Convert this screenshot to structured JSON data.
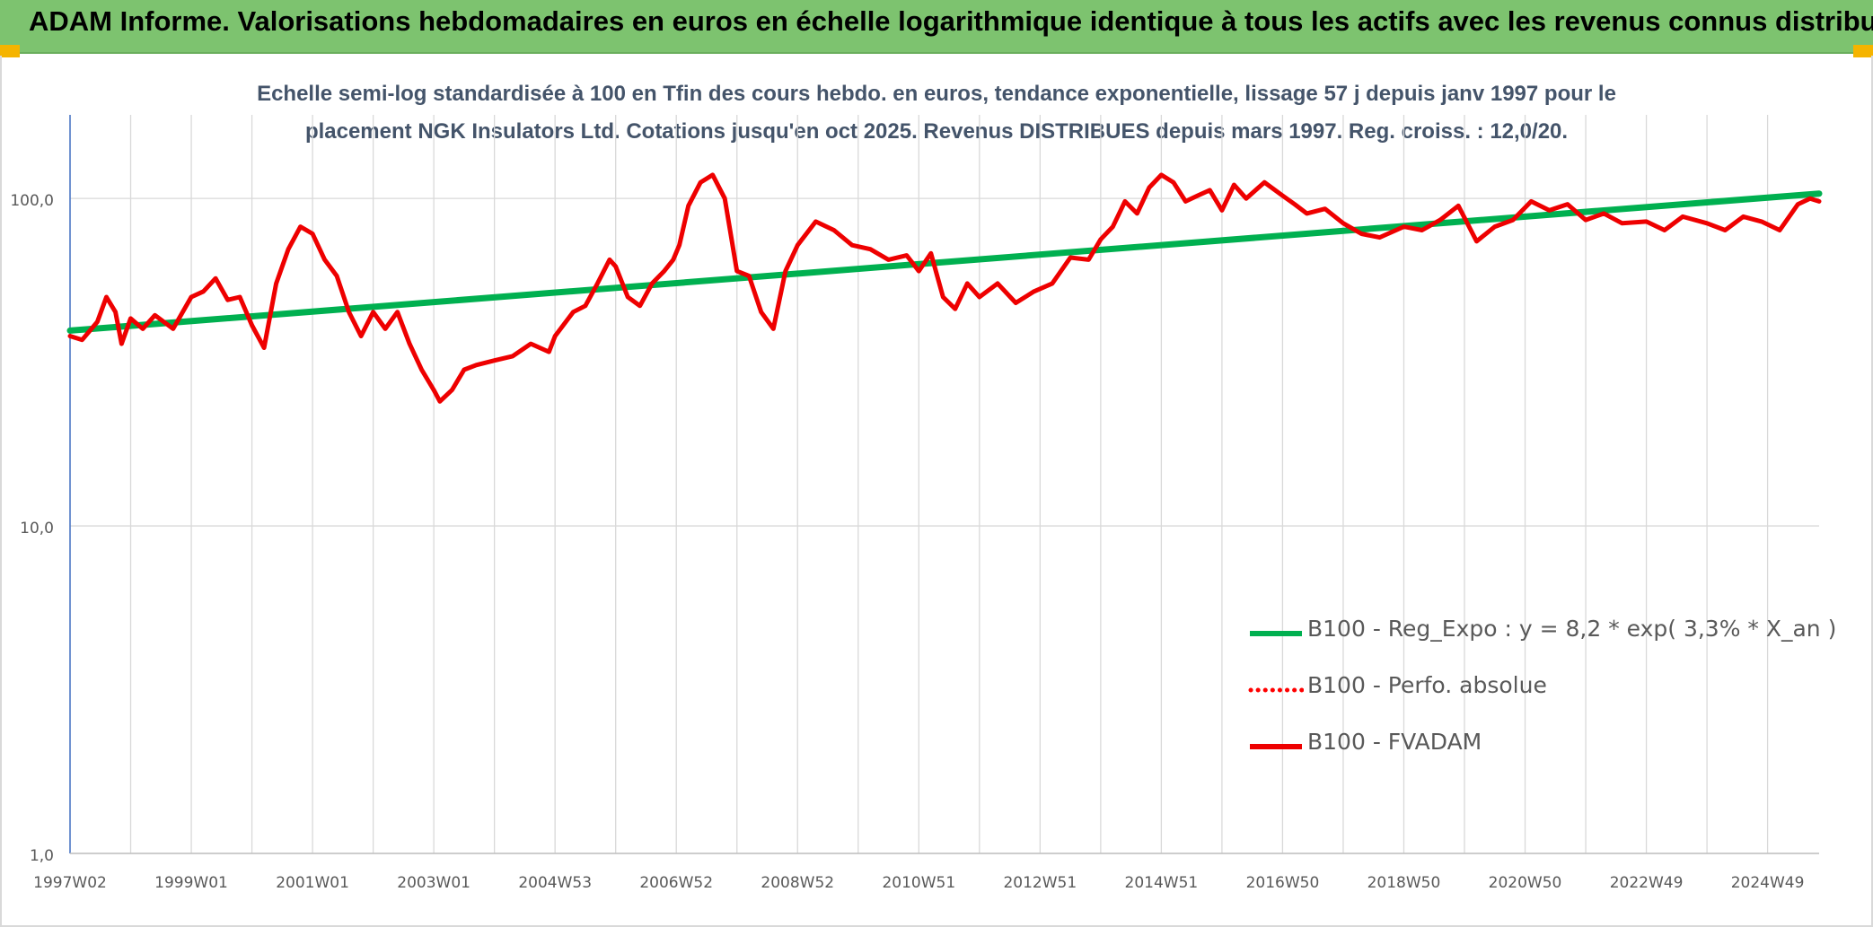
{
  "header": {
    "title": "ADAM Informe. Valorisations hebdomadaires en euros en échelle logarithmique identique à tous les actifs avec les revenus connus distribués"
  },
  "colors": {
    "banner": "#7dc36f",
    "accent_corner": "#f5b400",
    "regression": "#00b050",
    "perf": "#ff0000",
    "fvadam": "#ee0000",
    "grid": "#d9d9d9",
    "axis_text": "#595959",
    "title_text": "#44546a"
  },
  "chart_data": {
    "type": "line",
    "title_lines": [
      "Echelle semi-log standardisée à 100 en Tfin des cours hebdo. en euros, tendance exponentielle, lissage 57 j depuis janv 1997 pour le",
      "placement NGK Insulators Ltd. Cotations jusqu'en oct 2025. Revenus DISTRIBUES depuis mars 1997. Reg. croiss. : 12,0/20."
    ],
    "yscale": "log",
    "ylim": [
      1,
      180
    ],
    "xlim": [
      1997.0,
      2025.85
    ],
    "y_ticks": [
      {
        "value": 1,
        "label": "1,0"
      },
      {
        "value": 10,
        "label": "10,0"
      },
      {
        "value": 100,
        "label": "100,0"
      }
    ],
    "x_ticks": [
      {
        "value": 1997.0,
        "label": "1997W02"
      },
      {
        "value": 1999.0,
        "label": "1999W01"
      },
      {
        "value": 2001.0,
        "label": "2001W01"
      },
      {
        "value": 2003.0,
        "label": "2003W01"
      },
      {
        "value": 2005.0,
        "label": "2004W53"
      },
      {
        "value": 2007.0,
        "label": "2006W52"
      },
      {
        "value": 2009.0,
        "label": "2008W52"
      },
      {
        "value": 2011.0,
        "label": "2010W51"
      },
      {
        "value": 2013.0,
        "label": "2012W51"
      },
      {
        "value": 2015.0,
        "label": "2014W51"
      },
      {
        "value": 2017.0,
        "label": "2016W50"
      },
      {
        "value": 2019.0,
        "label": "2018W50"
      },
      {
        "value": 2021.0,
        "label": "2020W50"
      },
      {
        "value": 2023.0,
        "label": "2022W49"
      },
      {
        "value": 2025.0,
        "label": "2024W49"
      }
    ],
    "grid": true,
    "legend_position": "bottom-right",
    "series": [
      {
        "name": "B100 - Reg_Expo : y = 8,2 * exp( 3,3% *  X_an )",
        "style": "solid-thick",
        "color": "#00b050",
        "x": [
          1997.0,
          2025.85
        ],
        "y": [
          39.5,
          103.5
        ]
      },
      {
        "name": "B100 - Perfo. absolue",
        "style": "dotted",
        "color": "#ff0000",
        "x": [],
        "y": []
      },
      {
        "name": "B100 - FVADAM",
        "style": "solid",
        "color": "#ee0000",
        "x": [
          1997.0,
          1997.2,
          1997.45,
          1997.6,
          1997.75,
          1997.85,
          1998.0,
          1998.2,
          1998.4,
          1998.7,
          1999.0,
          1999.2,
          1999.4,
          1999.6,
          1999.8,
          2000.0,
          2000.2,
          2000.4,
          2000.6,
          2000.8,
          2001.0,
          2001.2,
          2001.4,
          2001.6,
          2001.8,
          2002.0,
          2002.2,
          2002.4,
          2002.6,
          2002.8,
          2003.0,
          2003.1,
          2003.3,
          2003.5,
          2003.7,
          2004.0,
          2004.3,
          2004.6,
          2004.9,
          2005.0,
          2005.3,
          2005.5,
          2005.7,
          2005.9,
          2006.0,
          2006.2,
          2006.4,
          2006.6,
          2006.8,
          2006.95,
          2007.05,
          2007.2,
          2007.4,
          2007.6,
          2007.8,
          2008.0,
          2008.2,
          2008.4,
          2008.6,
          2008.8,
          2009.0,
          2009.3,
          2009.6,
          2009.9,
          2010.2,
          2010.5,
          2010.8,
          2011.0,
          2011.2,
          2011.4,
          2011.6,
          2011.8,
          2012.0,
          2012.3,
          2012.6,
          2012.9,
          2013.2,
          2013.5,
          2013.8,
          2014.0,
          2014.2,
          2014.4,
          2014.6,
          2014.8,
          2015.0,
          2015.2,
          2015.4,
          2015.6,
          2015.8,
          2016.0,
          2016.2,
          2016.4,
          2016.7,
          2017.0,
          2017.2,
          2017.4,
          2017.7,
          2018.0,
          2018.3,
          2018.6,
          2019.0,
          2019.3,
          2019.6,
          2019.9,
          2020.2,
          2020.5,
          2020.8,
          2021.1,
          2021.4,
          2021.7,
          2022.0,
          2022.3,
          2022.6,
          2023.0,
          2023.3,
          2023.6,
          2024.0,
          2024.3,
          2024.6,
          2024.9,
          2025.2,
          2025.5,
          2025.7,
          2025.85
        ],
        "y": [
          38,
          37,
          42,
          50,
          45,
          36,
          43,
          40,
          44,
          40,
          50,
          52,
          57,
          49,
          50,
          41,
          35,
          55,
          70,
          82,
          78,
          65,
          58,
          45,
          38,
          45,
          40,
          45,
          36,
          30,
          26,
          24,
          26,
          30,
          31,
          32,
          33,
          36,
          34,
          38,
          45,
          47,
          55,
          65,
          62,
          50,
          47,
          55,
          60,
          65,
          72,
          95,
          112,
          118,
          100,
          60,
          58,
          45,
          40,
          60,
          72,
          85,
          80,
          72,
          70,
          65,
          67,
          60,
          68,
          50,
          46,
          55,
          50,
          55,
          48,
          52,
          55,
          66,
          65,
          75,
          82,
          98,
          90,
          108,
          118,
          112,
          98,
          102,
          106,
          92,
          110,
          100,
          112,
          102,
          96,
          90,
          93,
          84,
          78,
          76,
          82,
          80,
          86,
          95,
          74,
          82,
          86,
          98,
          92,
          96,
          86,
          90,
          84,
          85,
          80,
          88,
          84,
          80,
          88,
          85,
          80,
          96,
          100,
          98
        ]
      }
    ]
  }
}
